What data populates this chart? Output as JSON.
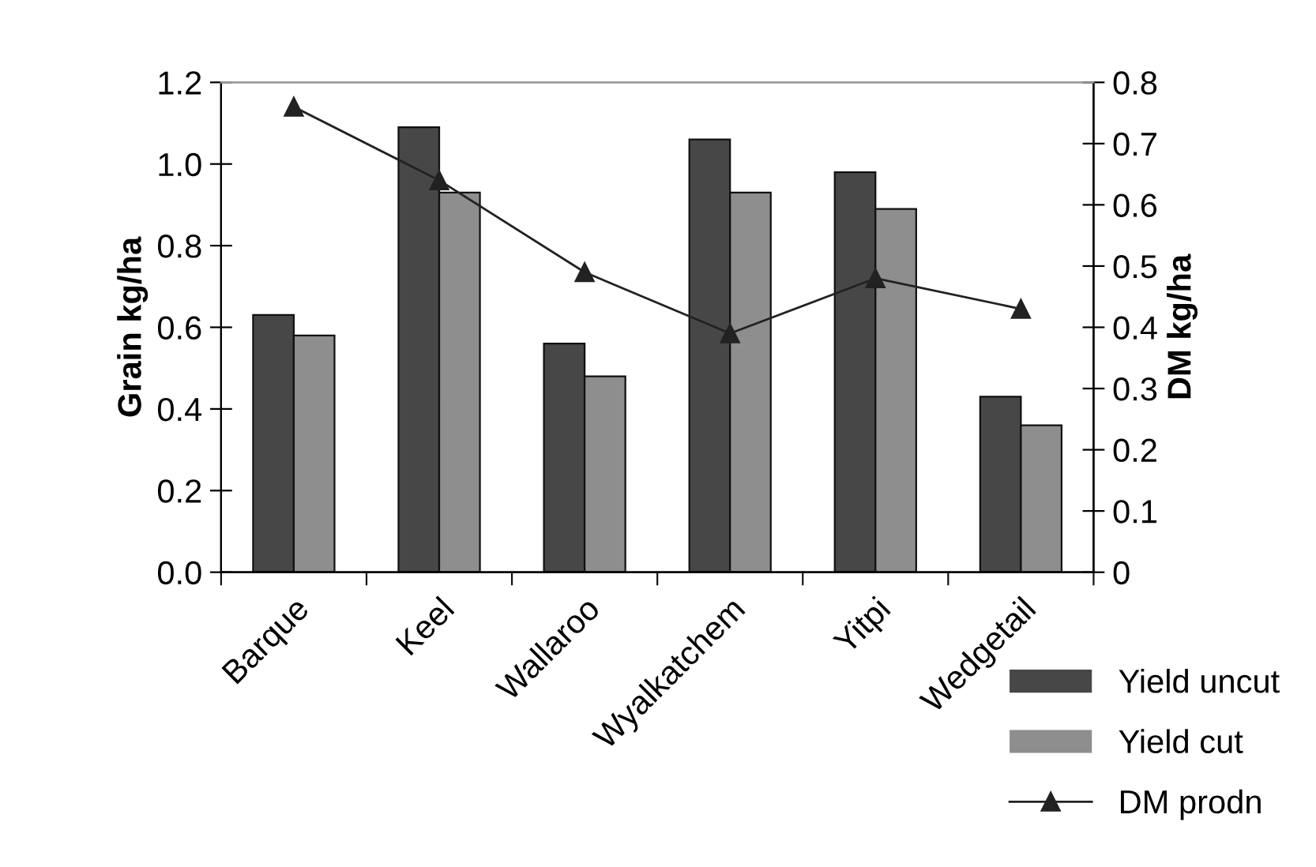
{
  "chart_data": {
    "type": "bar",
    "ylabel": "Grain kg/ha",
    "y2label": "DM kg/ha",
    "categories": [
      "Barque",
      "Keel",
      "Wallaroo",
      "Wyalkatchem",
      "Yitpi",
      "Wedgetail"
    ],
    "series": [
      {
        "name": "Yield uncut",
        "color": "#474747",
        "values": [
          0.63,
          1.09,
          0.56,
          1.06,
          0.98,
          0.43
        ]
      },
      {
        "name": "Yield cut",
        "color": "#8e8e8e",
        "values": [
          0.58,
          0.93,
          0.48,
          0.93,
          0.89,
          0.36
        ]
      },
      {
        "name": "DM prodn",
        "type": "line",
        "axis": "y2",
        "color": "#222222",
        "marker": "triangle",
        "values": [
          0.76,
          0.64,
          0.49,
          0.39,
          0.48,
          0.43
        ]
      }
    ],
    "ylim": [
      0,
      1.2
    ],
    "yticks": [
      {
        "value": 0,
        "label": "0.0"
      },
      0.2,
      0.4,
      0.6,
      0.8,
      {
        "value": 1,
        "label": "1.0"
      },
      1.2
    ],
    "y2lim": [
      0,
      0.8
    ],
    "y2ticks": [
      0,
      0.1,
      0.2,
      0.3,
      0.4,
      0.5,
      0.6,
      0.7,
      0.8
    ],
    "grid": false,
    "legend": "bottom right"
  }
}
